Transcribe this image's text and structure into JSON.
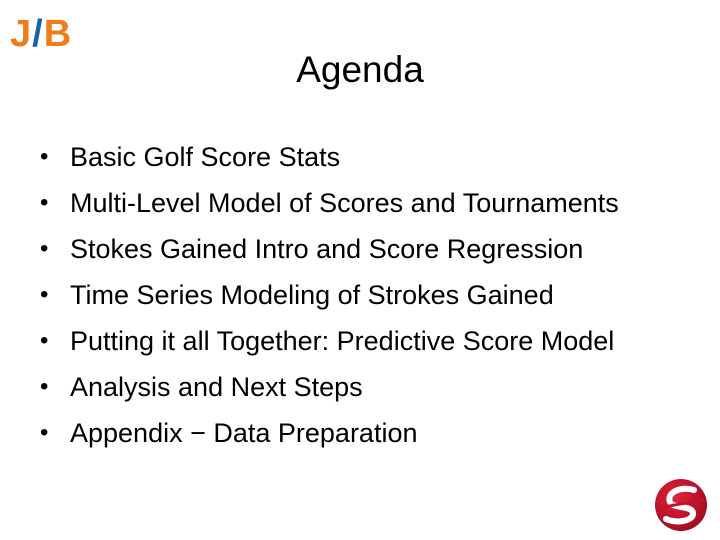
{
  "logo": {
    "j": "J",
    "slash": "/",
    "b": "B"
  },
  "slide": {
    "title": "Agenda",
    "bullet_glyph": "•",
    "items": [
      "Basic Golf Score Stats",
      "Multi-Level Model of Scores and Tournaments",
      "Stokes Gained Intro and Score Regression",
      "Time Series Modeling of Strokes Gained",
      "Putting it all Together:  Predictive Score Model",
      "Analysis and Next Steps",
      "Appendix − Data Preparation"
    ]
  },
  "colors": {
    "logo_orange": "#f07c1a",
    "logo_blue": "#1a63a8",
    "seal_red": "#c8102e"
  },
  "icons": {
    "corner_logo": "red-s-swoosh-logo"
  }
}
